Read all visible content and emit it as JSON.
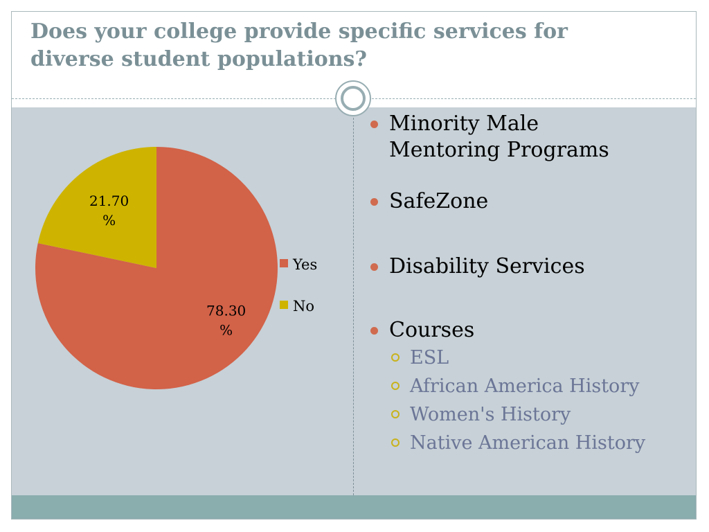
{
  "slide": {
    "title": "Does your college provide specific services for diverse student populations?"
  },
  "chart_data": {
    "type": "pie",
    "categories": [
      "Yes",
      "No"
    ],
    "values": [
      78.3,
      21.7
    ],
    "slice_labels": [
      "78.30\n%",
      "21.70\n%"
    ],
    "colors": [
      "#d26248",
      "#ceb400"
    ],
    "legend_position": "right"
  },
  "services": {
    "items": [
      {
        "label": "Minority Male Mentoring Programs",
        "lines": [
          "Minority Male",
          "Mentoring Programs"
        ],
        "subitems": []
      },
      {
        "label": "SafeZone",
        "lines": [
          "SafeZone"
        ],
        "subitems": []
      },
      {
        "label": "Disability Services",
        "lines": [
          "Disability Services"
        ],
        "subitems": []
      },
      {
        "label": "Courses",
        "lines": [
          "Courses"
        ],
        "subitems": [
          "ESL",
          "African America History",
          "Women's History",
          "Native American History"
        ]
      }
    ]
  }
}
